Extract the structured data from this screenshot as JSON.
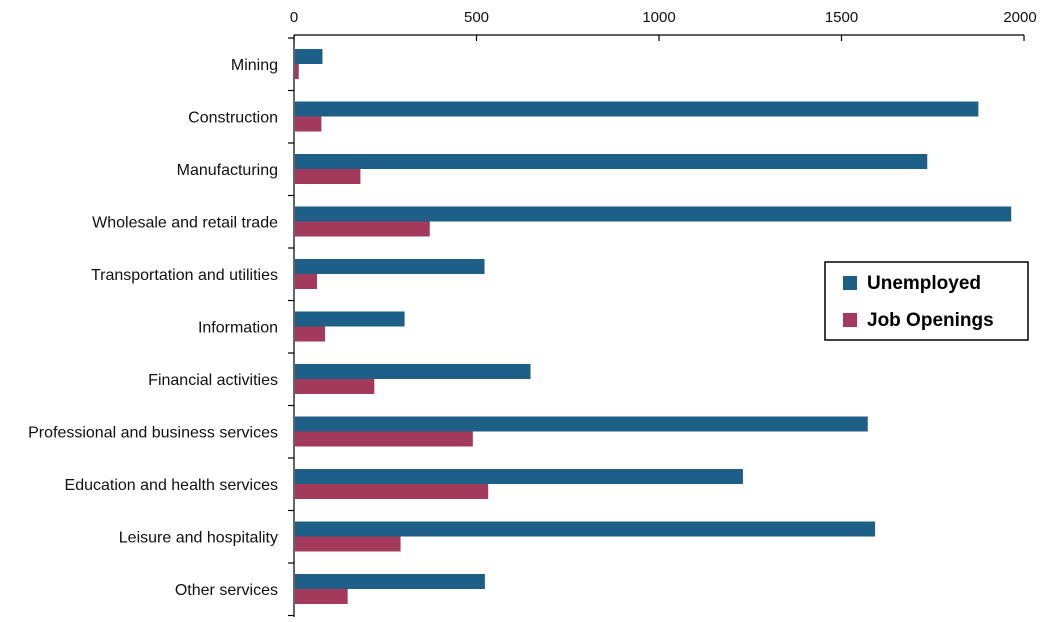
{
  "chart_data": {
    "type": "bar",
    "orientation": "horizontal",
    "title": "",
    "xlabel": "",
    "ylabel": "",
    "xlim": [
      0,
      2000
    ],
    "x_ticks": [
      0,
      500,
      1000,
      1500,
      2000
    ],
    "x_axis_position": "top",
    "grid": false,
    "legend_position": "right",
    "categories": [
      "Mining",
      "Construction",
      "Manufacturing",
      "Wholesale and retail trade",
      "Transportation and utilities",
      "Information",
      "Financial activities",
      "Professional and business services",
      "Education and health services",
      "Leisure and hospitality",
      "Other services"
    ],
    "series": [
      {
        "name": "Unemployed",
        "color": "#1d5f86",
        "values": [
          78,
          1875,
          1735,
          1965,
          522,
          303,
          648,
          1572,
          1230,
          1592,
          523
        ]
      },
      {
        "name": "Job Openings",
        "color": "#a33a5c",
        "values": [
          13,
          75,
          182,
          372,
          63,
          85,
          220,
          490,
          532,
          292,
          147
        ]
      }
    ]
  }
}
